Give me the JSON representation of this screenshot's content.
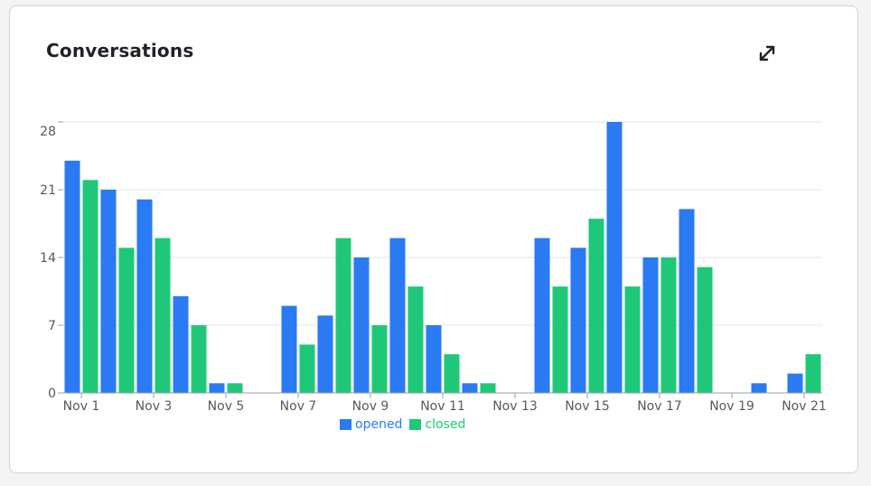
{
  "card": {
    "title": "Conversations",
    "expand_icon": "expand-arrows-icon"
  },
  "colors": {
    "opened": "#2a7af3",
    "closed": "#1fc878",
    "grid": "#e3e5e8",
    "axis": "#9aa0a6"
  },
  "chart_data": {
    "type": "bar",
    "title": "Conversations",
    "xlabel": "",
    "ylabel": "",
    "ylim": [
      0,
      28
    ],
    "yticks": [
      0,
      7,
      14,
      21,
      28
    ],
    "categories": [
      "Nov 1",
      "Nov 2",
      "Nov 3",
      "Nov 4",
      "Nov 5",
      "Nov 6",
      "Nov 7",
      "Nov 8",
      "Nov 9",
      "Nov 10",
      "Nov 11",
      "Nov 12",
      "Nov 13",
      "Nov 14",
      "Nov 15",
      "Nov 16",
      "Nov 17",
      "Nov 18",
      "Nov 19",
      "Nov 20",
      "Nov 21"
    ],
    "tick_labels": [
      "Nov 1",
      "Nov 3",
      "Nov 5",
      "Nov 7",
      "Nov 9",
      "Nov 11",
      "Nov 13",
      "Nov 15",
      "Nov 17",
      "Nov 19",
      "Nov 21"
    ],
    "series": [
      {
        "name": "opened",
        "values": [
          24,
          21,
          20,
          10,
          1,
          0,
          9,
          8,
          14,
          16,
          7,
          1,
          0,
          16,
          15,
          28,
          14,
          19,
          0,
          1,
          2
        ]
      },
      {
        "name": "closed",
        "values": [
          22,
          15,
          16,
          7,
          1,
          0,
          5,
          16,
          7,
          11,
          4,
          1,
          0,
          11,
          18,
          11,
          14,
          13,
          0,
          0,
          4
        ]
      }
    ],
    "legend_position": "bottom",
    "grid": true
  }
}
